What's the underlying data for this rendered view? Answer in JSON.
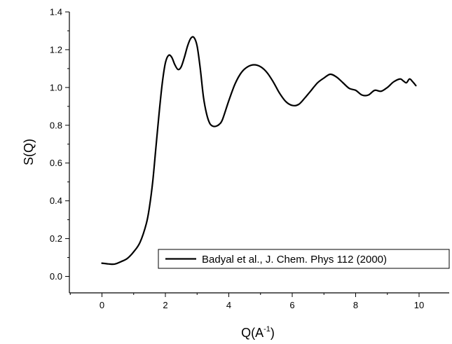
{
  "chart_data": {
    "type": "line",
    "title": "",
    "xlabel": "Q(A",
    "xlabel_sup": "-1",
    "xlabel_close": ")",
    "ylabel": "S(Q)",
    "xlim": [
      -1,
      11
    ],
    "ylim": [
      -0.1,
      1.4
    ],
    "x_ticks": [
      0,
      2,
      4,
      6,
      8,
      10
    ],
    "y_ticks": [
      0.0,
      0.2,
      0.4,
      0.6,
      0.8,
      1.0,
      1.2,
      1.4
    ],
    "x_tick_labels": [
      "0",
      "2",
      "4",
      "6",
      "8",
      "10"
    ],
    "y_tick_labels": [
      "0.0",
      "0.2",
      "0.4",
      "0.6",
      "0.8",
      "1.0",
      "1.2",
      "1.4"
    ],
    "grid": false,
    "legend_position": "bottom-right",
    "series": [
      {
        "name": "Badyal et al., J. Chem. Phys 112 (2000)",
        "color": "#000000",
        "x": [
          0.0,
          0.2,
          0.4,
          0.6,
          0.8,
          1.0,
          1.2,
          1.4,
          1.5,
          1.6,
          1.7,
          1.8,
          1.9,
          2.0,
          2.1,
          2.2,
          2.3,
          2.4,
          2.5,
          2.6,
          2.7,
          2.8,
          2.9,
          3.0,
          3.1,
          3.2,
          3.3,
          3.4,
          3.5,
          3.6,
          3.7,
          3.8,
          4.0,
          4.2,
          4.4,
          4.6,
          4.8,
          5.0,
          5.2,
          5.4,
          5.6,
          5.8,
          6.0,
          6.2,
          6.4,
          6.6,
          6.8,
          7.0,
          7.2,
          7.4,
          7.6,
          7.8,
          8.0,
          8.2,
          8.4,
          8.6,
          8.8,
          9.0,
          9.2,
          9.4,
          9.5,
          9.6,
          9.7,
          9.8,
          9.9
        ],
        "y": [
          0.07,
          0.066,
          0.065,
          0.078,
          0.095,
          0.13,
          0.18,
          0.28,
          0.37,
          0.5,
          0.68,
          0.86,
          1.02,
          1.13,
          1.17,
          1.16,
          1.12,
          1.095,
          1.11,
          1.16,
          1.22,
          1.26,
          1.265,
          1.22,
          1.1,
          0.95,
          0.86,
          0.81,
          0.795,
          0.795,
          0.805,
          0.83,
          0.93,
          1.02,
          1.08,
          1.11,
          1.12,
          1.11,
          1.08,
          1.03,
          0.97,
          0.925,
          0.905,
          0.91,
          0.945,
          0.985,
          1.025,
          1.05,
          1.07,
          1.055,
          1.025,
          0.995,
          0.985,
          0.96,
          0.96,
          0.985,
          0.98,
          1.0,
          1.03,
          1.045,
          1.035,
          1.025,
          1.045,
          1.03,
          1.01
        ]
      }
    ]
  }
}
